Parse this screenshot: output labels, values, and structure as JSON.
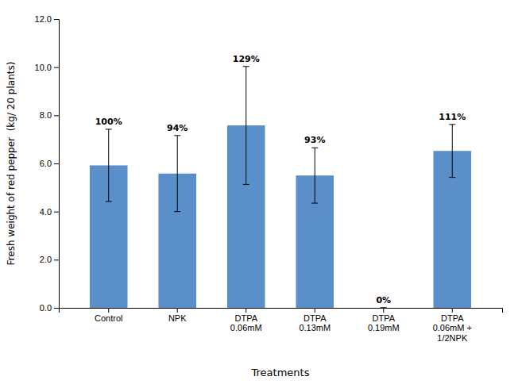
{
  "chart_data": {
    "type": "bar",
    "categories": [
      "Control",
      "NPK",
      "DTPA\n0.06mM",
      "DTPA\n0.13mM",
      "DTPA\n0.19mM",
      "DTPA\n0.06mM +\n1/2NPK"
    ],
    "values": [
      5.92,
      5.58,
      7.58,
      5.5,
      0.0,
      6.52
    ],
    "errors": [
      1.5,
      1.58,
      2.45,
      1.15,
      0.0,
      1.1
    ],
    "annotations": [
      "100%",
      "94%",
      "129%",
      "93%",
      "0%",
      "111%"
    ],
    "color": "#5b8fc9",
    "ylabel": "Fresh weight of red pepper  (kg/ 20 plants)",
    "xlabel": "Treatments",
    "ylim": [
      0.0,
      12.0
    ],
    "yticks": [
      {
        "value": 0,
        "label": "0.0"
      },
      {
        "value": 2,
        "label": "2.0"
      },
      {
        "value": 4,
        "label": "4.0"
      },
      {
        "value": 6,
        "label": "6.0"
      },
      {
        "value": 8,
        "label": "8.0"
      },
      {
        "value": 10,
        "label": "10.0"
      },
      {
        "value": 12,
        "label": "12.0"
      }
    ],
    "grid": false
  }
}
